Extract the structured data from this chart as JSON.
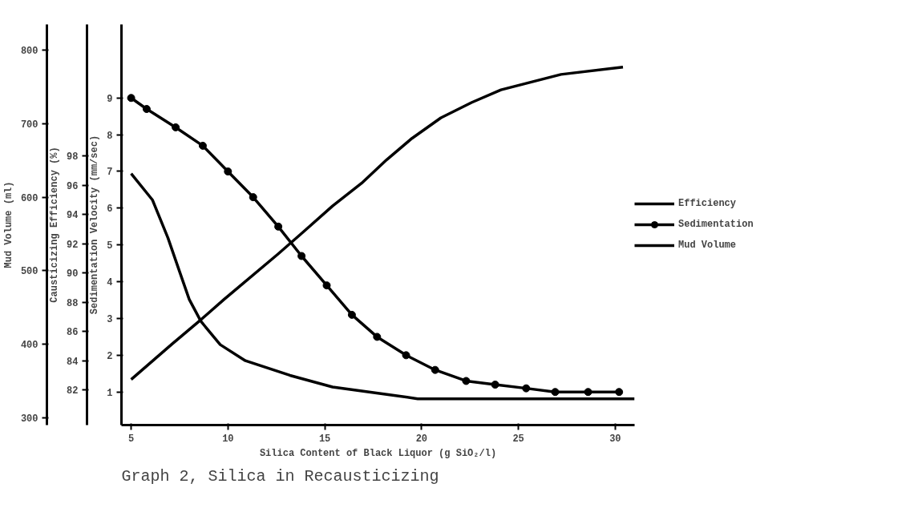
{
  "chart_data": {
    "type": "line",
    "title": "Graph 2, Silica in Recausticizing",
    "xlabel": "Silica Content of Black Liquor (g SiO₂/l)",
    "ylabel": "Sedimentation Velocity (mm/sec)",
    "y2label": "Causticizing Efficiency (%)",
    "y3label": "Mud Volume (ml)",
    "xlim": [
      4.5,
      31
    ],
    "xticks": [
      5,
      10,
      15,
      20,
      25,
      30
    ],
    "ylim": [
      0.1,
      11
    ],
    "yticks": [
      1,
      2,
      3,
      4,
      5,
      6,
      7,
      8,
      9
    ],
    "y2lim": [
      79.6,
      107
    ],
    "y2ticks": [
      82,
      84,
      86,
      88,
      90,
      92,
      94,
      96,
      98
    ],
    "y3lim": [
      290,
      835
    ],
    "y3ticks": [
      300,
      400,
      500,
      600,
      700,
      800
    ],
    "grid": false,
    "legend": "right",
    "line_style": "solid",
    "series": [
      {
        "name": "Efficiency",
        "color": "#000000",
        "axis": "y2",
        "marker": "none",
        "x": [
          5.0,
          6.1,
          6.9,
          7.5,
          8.0,
          8.6,
          9.6,
          10.9,
          13.2,
          15.4,
          18.2,
          19.8,
          24.7,
          31.0
        ],
        "values": [
          96.8,
          95.0,
          92.4,
          90.1,
          88.2,
          86.7,
          85.1,
          84.0,
          83.0,
          82.2,
          81.7,
          81.4,
          81.4,
          81.4
        ]
      },
      {
        "name": "Sedimentation",
        "color": "#000000",
        "axis": "y",
        "marker": "circle",
        "x": [
          5.0,
          5.8,
          7.3,
          8.7,
          10.0,
          11.3,
          12.6,
          13.8,
          15.1,
          16.4,
          17.7,
          19.2,
          20.7,
          22.3,
          23.8,
          25.4,
          26.9,
          28.6,
          30.2
        ],
        "values": [
          9.0,
          8.7,
          8.2,
          7.7,
          7.0,
          6.3,
          5.5,
          4.7,
          3.9,
          3.1,
          2.5,
          2.0,
          1.6,
          1.3,
          1.2,
          1.1,
          1.0,
          1.0,
          1.0
        ]
      },
      {
        "name": "Mud Volume",
        "color": "#000000",
        "axis": "y3",
        "marker": "none",
        "x": [
          5.0,
          7.1,
          8.5,
          9.8,
          12.6,
          13.9,
          15.4,
          16.9,
          18.2,
          19.5,
          21.0,
          22.6,
          24.1,
          27.2,
          30.4
        ],
        "values": [
          352,
          400,
          431,
          461,
          523,
          553,
          588,
          619,
          651,
          680,
          708,
          729,
          746,
          767,
          777
        ]
      }
    ]
  }
}
